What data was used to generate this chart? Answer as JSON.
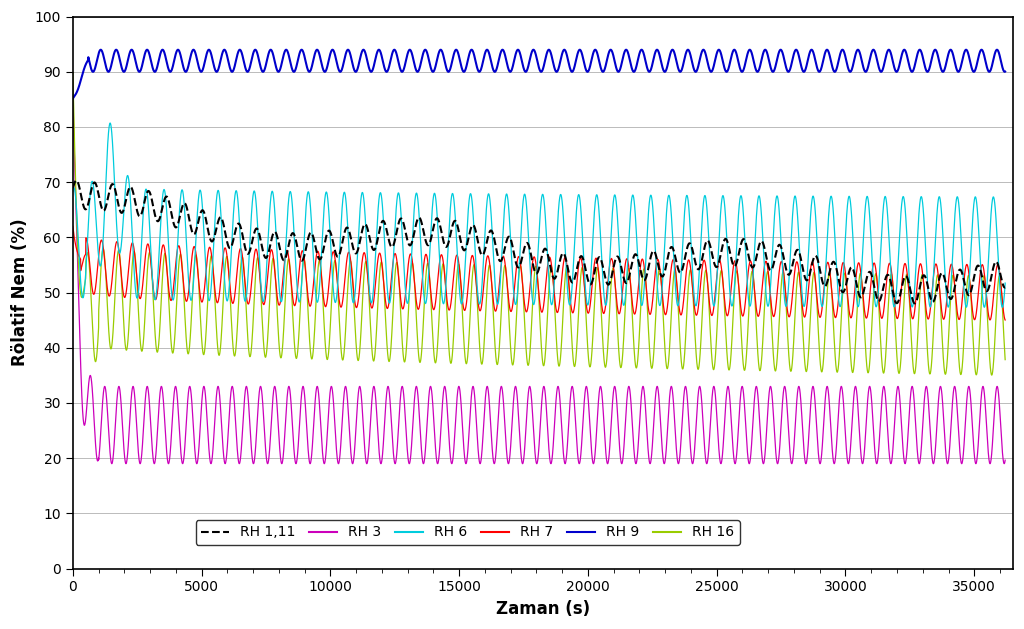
{
  "title": "",
  "xlabel": "Zaman (s)",
  "ylabel": "Rölatif Nem (%)",
  "xlim": [
    0,
    36500
  ],
  "ylim": [
    0,
    100
  ],
  "xticks": [
    0,
    5000,
    10000,
    15000,
    20000,
    25000,
    30000,
    35000
  ],
  "yticks": [
    0,
    10,
    20,
    30,
    40,
    50,
    60,
    70,
    80,
    90,
    100
  ],
  "colors": {
    "RH1": "#000000",
    "RH3": "#cc00bb",
    "RH6": "#00ccdd",
    "RH7": "#ff0000",
    "RH9": "#0000cc",
    "RH16": "#99cc00"
  },
  "background_color": "#ffffff",
  "grid_color": "#bbbbbb"
}
